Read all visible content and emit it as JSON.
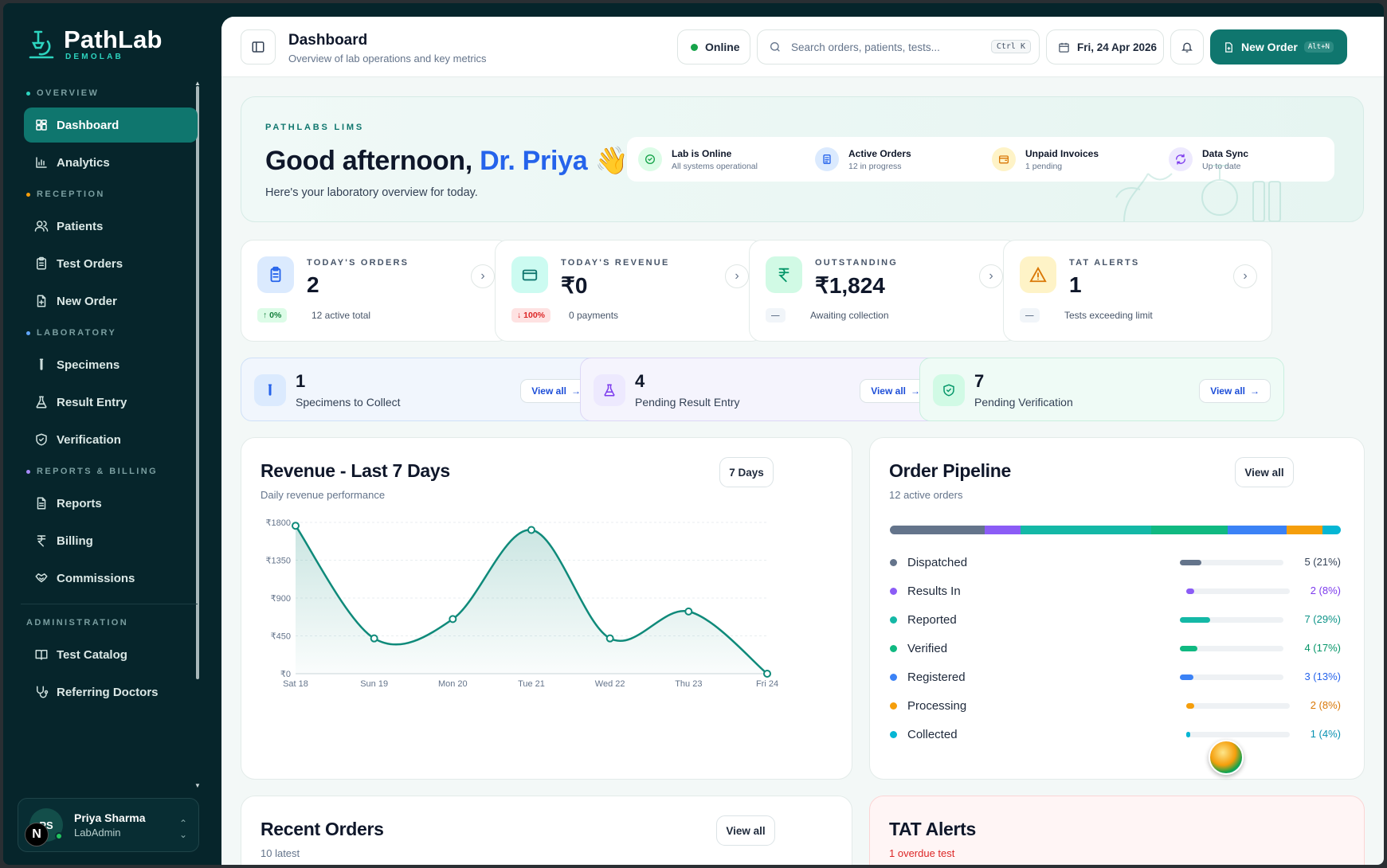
{
  "brand": {
    "title": "PathLab",
    "subtitle": "DEMOLAB"
  },
  "sidebar": {
    "sections": [
      {
        "label": "OVERVIEW",
        "items": [
          {
            "label": "Dashboard",
            "icon": "dashboard-icon",
            "active": true
          },
          {
            "label": "Analytics",
            "icon": "chart-bar-icon"
          }
        ]
      },
      {
        "label": "RECEPTION",
        "items": [
          {
            "label": "Patients",
            "icon": "users-icon"
          },
          {
            "label": "Test Orders",
            "icon": "clipboard-icon"
          },
          {
            "label": "New Order",
            "icon": "file-plus-icon"
          }
        ]
      },
      {
        "label": "LABORATORY",
        "items": [
          {
            "label": "Specimens",
            "icon": "test-tube-icon"
          },
          {
            "label": "Result Entry",
            "icon": "flask-icon"
          },
          {
            "label": "Verification",
            "icon": "shield-check-icon"
          }
        ]
      },
      {
        "label": "REPORTS & BILLING",
        "items": [
          {
            "label": "Reports",
            "icon": "file-text-icon"
          },
          {
            "label": "Billing",
            "icon": "rupee-icon"
          },
          {
            "label": "Commissions",
            "icon": "handshake-icon"
          }
        ]
      },
      {
        "label": "ADMINISTRATION",
        "items": [
          {
            "label": "Test Catalog",
            "icon": "book-icon"
          },
          {
            "label": "Referring Doctors",
            "icon": "stethoscope-icon"
          }
        ]
      }
    ],
    "user": {
      "initials": "PS",
      "name": "Priya Sharma",
      "role": "LabAdmin",
      "badge": "N"
    }
  },
  "header": {
    "title": "Dashboard",
    "subtitle": "Overview of lab operations and key metrics",
    "status": "Online",
    "search_placeholder": "Search orders, patients, tests...",
    "search_kbd": "Ctrl K",
    "date": "Fri, 24 Apr 2026",
    "new_order": "New Order",
    "new_order_kbd": "Alt+N"
  },
  "hero": {
    "eyebrow": "PATHLABS LIMS",
    "greeting": "Good afternoon,",
    "name": "Dr. Priya",
    "wave": "👋",
    "sub": "Here's your laboratory overview for today.",
    "status": [
      {
        "title": "Lab is Online",
        "sub": "All systems operational",
        "color": "#16a34a",
        "bg": "#dcfce7"
      },
      {
        "title": "Active Orders",
        "sub": "12 in progress",
        "color": "#2563eb",
        "bg": "#dbeafe"
      },
      {
        "title": "Unpaid Invoices",
        "sub": "1 pending",
        "color": "#d97706",
        "bg": "#fef3c7"
      },
      {
        "title": "Data Sync",
        "sub": "Up to date",
        "color": "#7c3aed",
        "bg": "#ede9fe"
      }
    ]
  },
  "stats": [
    {
      "label": "TODAY'S ORDERS",
      "value": "2",
      "badge": "↑ 0%",
      "note": "12 active total",
      "color": "#2563eb",
      "bg": "#dbeafe",
      "badge_color": "#15803d",
      "badge_bg": "#dcfce7"
    },
    {
      "label": "TODAY'S REVENUE",
      "value": "₹0",
      "badge": "↓ 100%",
      "note": "0 payments",
      "color": "#0f766e",
      "bg": "#ccfbf1",
      "badge_color": "#dc2626",
      "badge_bg": "#fee2e2"
    },
    {
      "label": "OUTSTANDING",
      "value": "₹1,824",
      "badge": "—",
      "note": "Awaiting collection",
      "color": "#059669",
      "bg": "#d1fae5",
      "badge_color": "#64748b",
      "badge_bg": "#f1f5f9"
    },
    {
      "label": "TAT ALERTS",
      "value": "1",
      "badge": "—",
      "note": "Tests exceeding limit",
      "color": "#d97706",
      "bg": "#fef3c7",
      "badge_color": "#64748b",
      "badge_bg": "#f1f5f9"
    }
  ],
  "quick": [
    {
      "count": "1",
      "label": "Specimens to Collect",
      "action": "View all",
      "color": "#2563eb",
      "bg": "#dbeafe",
      "card_bg": "#f1f6fd",
      "border": "#cfe0f7"
    },
    {
      "count": "4",
      "label": "Pending Result Entry",
      "action": "View all",
      "color": "#7c3aed",
      "bg": "#ede9fe",
      "card_bg": "#f5f4fd",
      "border": "#ddd7f6"
    },
    {
      "count": "7",
      "label": "Pending Verification",
      "action": "View all",
      "color": "#059669",
      "bg": "#d1fae5",
      "card_bg": "#effbf6",
      "border": "#c9efdf"
    }
  ],
  "revenue": {
    "title": "Revenue - Last 7 Days",
    "subtitle": "Daily revenue performance",
    "range": "7 Days"
  },
  "chart_data": {
    "type": "area",
    "categories": [
      "Sat 18",
      "Sun 19",
      "Mon 20",
      "Tue 21",
      "Wed 22",
      "Thu 23",
      "Fri 24"
    ],
    "values": [
      1760,
      420,
      650,
      1710,
      420,
      740,
      0
    ],
    "yticks": [
      "₹0",
      "₹450",
      "₹900",
      "₹1350",
      "₹1800"
    ],
    "ylim": [
      0,
      1800
    ],
    "color": "#0f8a7a"
  },
  "pipeline": {
    "title": "Order Pipeline",
    "subtitle": "12 active orders",
    "action": "View all",
    "stages": [
      {
        "label": "Dispatched",
        "value": "5 (21%)",
        "pct": 21,
        "color": "#64748b",
        "text": "#334155"
      },
      {
        "label": "Results In",
        "value": "2 (8%)",
        "pct": 8,
        "color": "#8b5cf6",
        "text": "#7c3aed"
      },
      {
        "label": "Reported",
        "value": "7 (29%)",
        "pct": 29,
        "color": "#14b8a6",
        "text": "#0d9488"
      },
      {
        "label": "Verified",
        "value": "4 (17%)",
        "pct": 17,
        "color": "#10b981",
        "text": "#059669"
      },
      {
        "label": "Registered",
        "value": "3 (13%)",
        "pct": 13,
        "color": "#3b82f6",
        "text": "#2563eb"
      },
      {
        "label": "Processing",
        "value": "2 (8%)",
        "pct": 8,
        "color": "#f59e0b",
        "text": "#d97706"
      },
      {
        "label": "Collected",
        "value": "1 (4%)",
        "pct": 4,
        "color": "#06b6d4",
        "text": "#0891b2"
      }
    ]
  },
  "recent": {
    "title": "Recent Orders",
    "subtitle": "10 latest",
    "action": "View all"
  },
  "tat": {
    "title": "TAT Alerts",
    "subtitle": "1 overdue test"
  }
}
